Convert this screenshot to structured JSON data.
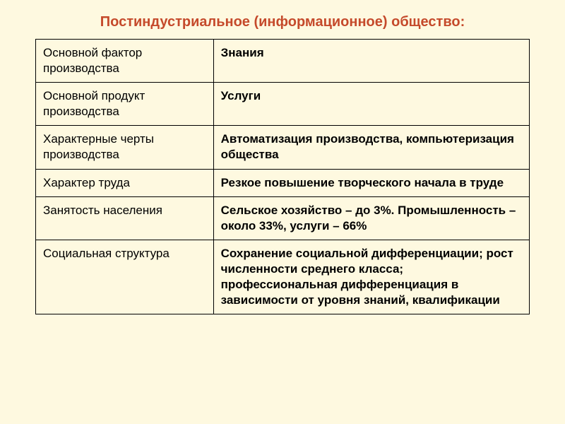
{
  "title": "Постиндустриальное (информационное) общество:",
  "table": {
    "rows": [
      {
        "label": "Основной фактор производства",
        "value": "Знания"
      },
      {
        "label": "Основной продукт производства",
        "value": "Услуги"
      },
      {
        "label": "Характерные черты производства",
        "value": "Автоматизация производства, компьютеризация общества"
      },
      {
        "label": "Характер труда",
        "value": "Резкое повышение творческого начала в труде"
      },
      {
        "label": "Занятость населения",
        "value": "Сельское хозяйство – до 3%. Промышленность – около 33%, услуги – 66%"
      },
      {
        "label": "Социальная структура",
        "value": "Сохранение социальной дифференциации; рост численности среднего класса; профессиональная дифференциация в зависимости от уровня знаний, квалификации"
      }
    ]
  },
  "styling": {
    "background_color": "#fef9e0",
    "title_color": "#c54a2b",
    "title_fontsize": 20,
    "cell_fontsize": 17,
    "border_color": "#000000",
    "label_column_width_pct": 36,
    "value_column_width_pct": 64,
    "value_font_weight": "bold",
    "label_font_weight": "normal"
  }
}
